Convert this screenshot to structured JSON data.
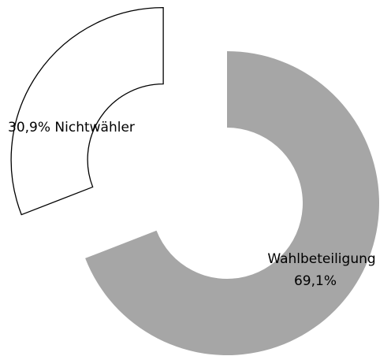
{
  "chart_data": {
    "type": "donut",
    "categories": [
      "Wahlbeteiligung",
      "Nichtwähler"
    ],
    "values": [
      69.1,
      30.9
    ],
    "value_labels": [
      "69,1%",
      "30,9%"
    ],
    "colors": [
      "#a6a6a6",
      "#ffffff"
    ]
  }
}
